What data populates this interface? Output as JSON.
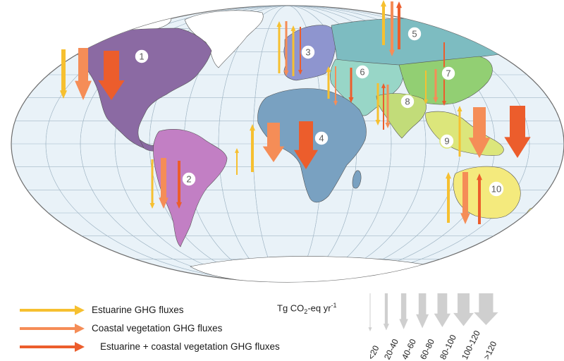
{
  "regions": [
    {
      "id": "1",
      "label": "1",
      "color": "#8b6aa3"
    },
    {
      "id": "2",
      "label": "2",
      "color": "#c27fc4"
    },
    {
      "id": "3",
      "label": "3",
      "color": "#8e95cf"
    },
    {
      "id": "4",
      "label": "4",
      "color": "#79a1c1"
    },
    {
      "id": "5",
      "label": "5",
      "color": "#7dbcc1"
    },
    {
      "id": "6",
      "label": "6",
      "color": "#98d6c7"
    },
    {
      "id": "7",
      "label": "7",
      "color": "#92cf73"
    },
    {
      "id": "8",
      "label": "8",
      "color": "#c2dc79"
    },
    {
      "id": "9",
      "label": "9",
      "color": "#dce67b"
    },
    {
      "id": "10",
      "label": "10",
      "color": "#f4ea7d"
    }
  ],
  "flux_colors": {
    "estuarine": "#f6c030",
    "coastal_vegetation": "#f58d57",
    "combined": "#ec5d2c"
  },
  "legend": {
    "items": [
      {
        "key": "estuarine",
        "label": "Estuarine GHG fluxes"
      },
      {
        "key": "coastal_vegetation",
        "label": "Coastal vegetation GHG fluxes"
      },
      {
        "key": "combined",
        "label": "Estuarine + coastal vegetation GHG fluxes"
      }
    ]
  },
  "scale": {
    "title": "Tg CO",
    "title_sub": "2",
    "title_rest": "-eq yr",
    "title_sup": "-1",
    "classes": [
      "<20",
      "20-40",
      "40-60",
      "60-80",
      "80-100",
      "100-120",
      ">120"
    ]
  }
}
